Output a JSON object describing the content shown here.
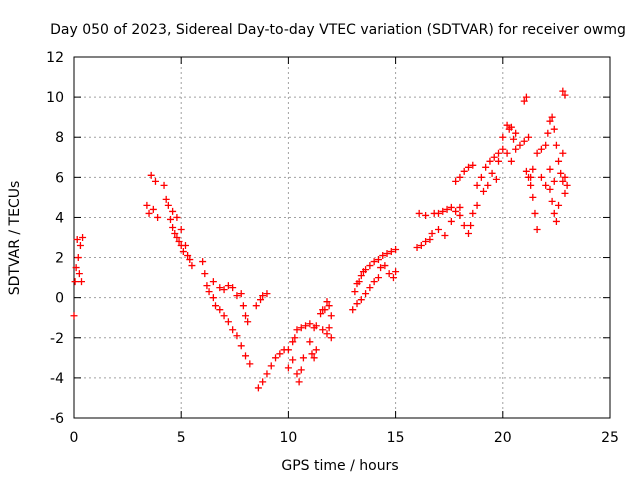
{
  "chart_data": {
    "type": "scatter",
    "title": "Day 050 of 2023, Sidereal Day-to-day VTEC variation (SDTVAR) for receiver owmg",
    "xlabel": "GPS time / hours",
    "ylabel": "SDTVAR / TECUs",
    "xlim": [
      0,
      25
    ],
    "ylim": [
      -6,
      12
    ],
    "xticks": [
      0,
      5,
      10,
      15,
      20,
      25
    ],
    "yticks": [
      -6,
      -4,
      -2,
      0,
      2,
      4,
      6,
      8,
      10,
      12
    ],
    "grid": true,
    "marker": "+",
    "marker_color": "#ff0000",
    "series": [
      {
        "name": "SDTVAR",
        "points": [
          [
            0.0,
            -0.9
          ],
          [
            0.05,
            0.8
          ],
          [
            0.1,
            1.5
          ],
          [
            0.15,
            2.9
          ],
          [
            0.2,
            2.0
          ],
          [
            0.25,
            1.2
          ],
          [
            0.3,
            2.6
          ],
          [
            0.35,
            0.8
          ],
          [
            0.4,
            3.0
          ],
          [
            3.4,
            4.6
          ],
          [
            3.5,
            4.2
          ],
          [
            3.6,
            6.1
          ],
          [
            3.7,
            4.4
          ],
          [
            3.8,
            5.8
          ],
          [
            3.9,
            4.0
          ],
          [
            4.2,
            5.6
          ],
          [
            4.3,
            4.9
          ],
          [
            4.4,
            4.6
          ],
          [
            4.5,
            3.9
          ],
          [
            4.6,
            3.5
          ],
          [
            4.7,
            3.2
          ],
          [
            4.8,
            3.0
          ],
          [
            4.9,
            2.8
          ],
          [
            5.0,
            2.6
          ],
          [
            5.1,
            2.3
          ],
          [
            5.2,
            2.6
          ],
          [
            5.3,
            2.1
          ],
          [
            5.4,
            1.9
          ],
          [
            5.5,
            1.6
          ],
          [
            4.6,
            4.3
          ],
          [
            4.8,
            4.0
          ],
          [
            5.0,
            3.4
          ],
          [
            6.0,
            1.8
          ],
          [
            6.1,
            1.2
          ],
          [
            6.2,
            0.6
          ],
          [
            6.3,
            0.3
          ],
          [
            6.5,
            0.0
          ],
          [
            6.6,
            -0.4
          ],
          [
            6.8,
            -0.6
          ],
          [
            7.0,
            -0.9
          ],
          [
            7.2,
            -1.2
          ],
          [
            7.4,
            -1.6
          ],
          [
            7.6,
            -1.9
          ],
          [
            7.8,
            -2.4
          ],
          [
            8.0,
            -2.9
          ],
          [
            8.2,
            -3.3
          ],
          [
            6.5,
            0.8
          ],
          [
            6.8,
            0.5
          ],
          [
            7.0,
            0.4
          ],
          [
            7.2,
            0.6
          ],
          [
            7.4,
            0.5
          ],
          [
            7.6,
            0.1
          ],
          [
            7.8,
            0.2
          ],
          [
            7.9,
            -0.4
          ],
          [
            8.0,
            -0.9
          ],
          [
            8.1,
            -1.2
          ],
          [
            8.5,
            -0.4
          ],
          [
            8.7,
            -0.1
          ],
          [
            8.8,
            0.1
          ],
          [
            9.0,
            0.2
          ],
          [
            8.6,
            -4.5
          ],
          [
            8.8,
            -4.2
          ],
          [
            9.0,
            -3.8
          ],
          [
            9.2,
            -3.4
          ],
          [
            9.4,
            -3.0
          ],
          [
            9.6,
            -2.8
          ],
          [
            9.8,
            -2.6
          ],
          [
            10.0,
            -2.6
          ],
          [
            10.2,
            -2.2
          ],
          [
            10.3,
            -2.0
          ],
          [
            10.0,
            -3.5
          ],
          [
            10.2,
            -3.1
          ],
          [
            10.4,
            -3.8
          ],
          [
            10.5,
            -4.2
          ],
          [
            10.6,
            -3.6
          ],
          [
            10.7,
            -3.0
          ],
          [
            10.4,
            -1.6
          ],
          [
            10.6,
            -1.5
          ],
          [
            10.8,
            -1.4
          ],
          [
            11.0,
            -1.3
          ],
          [
            11.2,
            -1.5
          ],
          [
            11.3,
            -1.4
          ],
          [
            11.0,
            -2.2
          ],
          [
            11.1,
            -2.8
          ],
          [
            11.2,
            -3.0
          ],
          [
            11.3,
            -2.6
          ],
          [
            11.5,
            -0.8
          ],
          [
            11.6,
            -0.6
          ],
          [
            11.7,
            -0.6
          ],
          [
            11.8,
            -0.2
          ],
          [
            11.9,
            -0.4
          ],
          [
            12.0,
            -0.9
          ],
          [
            11.6,
            -1.6
          ],
          [
            11.8,
            -1.8
          ],
          [
            11.9,
            -1.5
          ],
          [
            12.0,
            -2.0
          ],
          [
            13.0,
            -0.6
          ],
          [
            13.1,
            0.3
          ],
          [
            13.2,
            0.7
          ],
          [
            13.3,
            0.8
          ],
          [
            13.4,
            1.1
          ],
          [
            13.5,
            1.3
          ],
          [
            13.6,
            1.4
          ],
          [
            13.8,
            1.6
          ],
          [
            14.0,
            1.8
          ],
          [
            14.2,
            1.9
          ],
          [
            14.4,
            2.1
          ],
          [
            14.6,
            2.2
          ],
          [
            14.8,
            2.3
          ],
          [
            15.0,
            2.4
          ],
          [
            13.2,
            -0.3
          ],
          [
            13.4,
            -0.1
          ],
          [
            13.6,
            0.2
          ],
          [
            13.8,
            0.5
          ],
          [
            14.0,
            0.8
          ],
          [
            14.3,
            1.5
          ],
          [
            14.5,
            1.6
          ],
          [
            14.7,
            1.2
          ],
          [
            14.9,
            1.0
          ],
          [
            15.0,
            1.3
          ],
          [
            14.2,
            1.0
          ],
          [
            16.0,
            2.5
          ],
          [
            16.2,
            2.6
          ],
          [
            16.4,
            2.8
          ],
          [
            16.6,
            2.9
          ],
          [
            16.7,
            3.2
          ],
          [
            16.1,
            4.2
          ],
          [
            16.4,
            4.1
          ],
          [
            16.8,
            4.2
          ],
          [
            17.0,
            4.2
          ],
          [
            17.2,
            4.3
          ],
          [
            17.4,
            4.4
          ],
          [
            17.6,
            4.5
          ],
          [
            17.8,
            4.3
          ],
          [
            18.0,
            4.5
          ],
          [
            18.2,
            3.6
          ],
          [
            18.4,
            3.2
          ],
          [
            18.5,
            3.6
          ],
          [
            18.6,
            4.2
          ],
          [
            18.8,
            4.6
          ],
          [
            17.0,
            3.4
          ],
          [
            17.3,
            3.1
          ],
          [
            17.6,
            3.8
          ],
          [
            18.0,
            4.1
          ],
          [
            17.8,
            5.8
          ],
          [
            18.0,
            6.0
          ],
          [
            18.2,
            6.3
          ],
          [
            18.4,
            6.5
          ],
          [
            18.6,
            6.6
          ],
          [
            18.8,
            5.6
          ],
          [
            19.0,
            6.0
          ],
          [
            19.2,
            6.5
          ],
          [
            19.4,
            6.8
          ],
          [
            19.6,
            7.0
          ],
          [
            19.8,
            7.2
          ],
          [
            20.0,
            7.4
          ],
          [
            20.2,
            7.2
          ],
          [
            20.4,
            6.8
          ],
          [
            20.6,
            7.4
          ],
          [
            20.8,
            7.6
          ],
          [
            21.0,
            7.8
          ],
          [
            21.2,
            8.0
          ],
          [
            19.1,
            5.3
          ],
          [
            19.3,
            5.6
          ],
          [
            19.5,
            6.2
          ],
          [
            19.7,
            5.9
          ],
          [
            19.8,
            6.8
          ],
          [
            20.0,
            8.0
          ],
          [
            20.2,
            8.6
          ],
          [
            20.3,
            8.4
          ],
          [
            21.0,
            9.8
          ],
          [
            21.1,
            10.0
          ],
          [
            20.4,
            8.5
          ],
          [
            20.5,
            7.9
          ],
          [
            20.6,
            8.2
          ],
          [
            21.1,
            6.3
          ],
          [
            21.2,
            6.0
          ],
          [
            21.3,
            5.6
          ],
          [
            21.4,
            5.0
          ],
          [
            21.5,
            4.2
          ],
          [
            21.6,
            3.4
          ],
          [
            21.3,
            6.0
          ],
          [
            21.4,
            6.4
          ],
          [
            21.6,
            7.2
          ],
          [
            21.8,
            7.4
          ],
          [
            22.0,
            7.6
          ],
          [
            22.1,
            8.2
          ],
          [
            22.2,
            8.8
          ],
          [
            22.3,
            9.0
          ],
          [
            22.4,
            8.4
          ],
          [
            22.5,
            7.6
          ],
          [
            22.6,
            6.8
          ],
          [
            22.7,
            6.2
          ],
          [
            22.8,
            5.8
          ],
          [
            21.8,
            6.0
          ],
          [
            22.0,
            5.6
          ],
          [
            22.2,
            5.4
          ],
          [
            22.3,
            4.8
          ],
          [
            22.4,
            4.2
          ],
          [
            22.5,
            3.8
          ],
          [
            22.6,
            4.6
          ],
          [
            22.4,
            5.8
          ],
          [
            22.2,
            6.4
          ],
          [
            22.8,
            10.3
          ],
          [
            22.9,
            10.1
          ],
          [
            22.8,
            7.2
          ],
          [
            22.9,
            6.0
          ],
          [
            22.9,
            5.2
          ],
          [
            23.0,
            5.6
          ]
        ]
      }
    ]
  }
}
